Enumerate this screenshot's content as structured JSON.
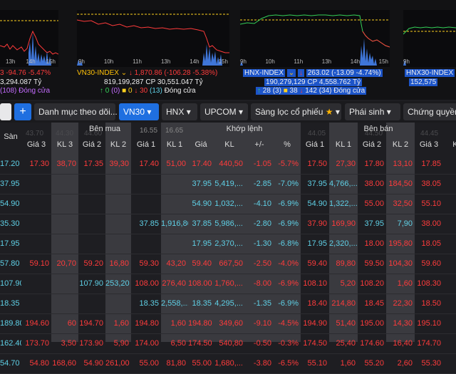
{
  "colors": {
    "up": "#34d058",
    "down": "#ff3b3b",
    "ref": "#ffd21f",
    "ceil": "#c46cff",
    "floor": "#5fd0e6",
    "accent": "#1f6fe0"
  },
  "cards": [
    {
      "ticks": [
        "13h",
        "14h",
        "15h"
      ],
      "name": "",
      "value": "3 -94.76 -5.47%",
      "line2": "3,294.087 Tỷ",
      "line3": "(108) Đóng cửa"
    },
    {
      "ticks": [
        "9h",
        "10h",
        "11h",
        "13h",
        "14h",
        "15h"
      ],
      "name": "VN30-INDEX",
      "arrow": "↓",
      "value": "1,870.86 (-106.28 -5.38%)",
      "line2": "819,199,287 CP 30,551.047 Tỷ",
      "c_up": "0",
      "c_ceil": "(0)",
      "c_ref": "0",
      "c_down": "30",
      "c_floor": "(13)",
      "status": "Đóng cửa"
    },
    {
      "ticks": [
        "9h",
        "10h",
        "11h",
        "13h",
        "14h",
        "15h"
      ],
      "name": "HNX-INDEX",
      "arrow": "↓",
      "value": "263.02 (-13.09 -4.74%)",
      "line2": "190,279,129 CP 4,558.762 Tỷ",
      "c_up": "28",
      "c_ceil": "(3)",
      "c_ref": "38",
      "c_down": "142",
      "c_floor": "(34)",
      "status": "Đóng cửa"
    },
    {
      "ticks": [
        "9h"
      ],
      "name": "HNX30-INDEX",
      "line2": "152,575"
    }
  ],
  "toolbar": {
    "plus": "+",
    "watchlist": "Danh mục theo dõi...",
    "vn30": "VN30",
    "hnx": "HNX",
    "upcom": "UPCOM",
    "screener": "Sàng lọc cổ phiếu",
    "derivatives": "Phái sinh",
    "warrants": "Chứng quyền"
  },
  "headers": {
    "san": "Sàn",
    "ben_mua": "Bên mua",
    "khop_lenh": "Khớp lệnh",
    "ben_ban": "Bên bán",
    "cols": [
      "Giá 3",
      "KL 3",
      "Giá 2",
      "KL 2",
      "Giá 1",
      "KL 1",
      "Giá",
      "KL",
      "+/-",
      "%",
      "Giá 1",
      "KL 1",
      "Giá 2",
      "KL 2",
      "Giá 3",
      "KL"
    ]
  },
  "rows": [
    {
      "san": "17.20",
      "c": [
        "17.30",
        "38,70",
        "17.35",
        "39,30",
        "17.40",
        "51,00",
        "17.40",
        "440,50",
        "-1.05",
        "-5.7%",
        "17.50",
        "27,30",
        "17.80",
        "13,10",
        "17.85",
        "7"
      ],
      "k": [
        "r",
        "r",
        "r",
        "r",
        "r",
        "r",
        "r",
        "r",
        "r",
        "r",
        "r",
        "r",
        "r",
        "r",
        "r",
        "r"
      ]
    },
    {
      "san": "37.95",
      "c": [
        "",
        "",
        "",
        "",
        "",
        "",
        "37.95",
        "5,419,...",
        "-2.85",
        "-7.0%",
        "37.95",
        "4,766,...",
        "38.00",
        "184,50",
        "38.05",
        "22"
      ],
      "k": [
        "",
        "",
        "",
        "",
        "",
        "",
        "f",
        "f",
        "f",
        "f",
        "f",
        "f",
        "r",
        "r",
        "r",
        "r"
      ]
    },
    {
      "san": "54.90",
      "c": [
        "",
        "",
        "",
        "",
        "",
        "",
        "54.90",
        "1,032,...",
        "-4.10",
        "-6.9%",
        "54.90",
        "1,322,...",
        "55.00",
        "32,50",
        "55.10",
        ""
      ],
      "k": [
        "",
        "",
        "",
        "",
        "",
        "",
        "f",
        "f",
        "f",
        "f",
        "f",
        "f",
        "r",
        "r",
        "r",
        "r"
      ]
    },
    {
      "san": "35.30",
      "c": [
        "",
        "",
        "",
        "",
        "37.85",
        "1,916,80",
        "37.85",
        "5,986,...",
        "-2.80",
        "-6.9%",
        "37.90",
        "169,90",
        "37.95",
        "7,90",
        "38.00",
        "8"
      ],
      "k": [
        "",
        "",
        "",
        "",
        "f",
        "f",
        "f",
        "f",
        "f",
        "f",
        "r",
        "r",
        "f",
        "f",
        "r",
        "r"
      ]
    },
    {
      "san": "17.95",
      "c": [
        "",
        "",
        "",
        "",
        "",
        "",
        "17.95",
        "2,370,...",
        "-1.30",
        "-6.8%",
        "17.95",
        "2,320,...",
        "18.00",
        "195,80",
        "18.05",
        "6"
      ],
      "k": [
        "",
        "",
        "",
        "",
        "",
        "",
        "f",
        "f",
        "f",
        "f",
        "f",
        "f",
        "r",
        "r",
        "r",
        "r"
      ]
    },
    {
      "san": "57.80",
      "c": [
        "59.10",
        "20,70",
        "59.20",
        "16,80",
        "59.30",
        "43,20",
        "59.40",
        "667,50",
        "-2.50",
        "-4.0%",
        "59.40",
        "89,80",
        "59.50",
        "104,30",
        "59.60",
        "2"
      ],
      "k": [
        "r",
        "r",
        "r",
        "r",
        "r",
        "r",
        "r",
        "r",
        "r",
        "r",
        "r",
        "r",
        "r",
        "r",
        "r",
        "r"
      ]
    },
    {
      "san": "107.90",
      "c": [
        "",
        "",
        "107.90",
        "253,20",
        "108.00",
        "276,40",
        "108.00",
        "1,760,...",
        "-8.00",
        "-6.9%",
        "108.10",
        "5,20",
        "108.20",
        "1,60",
        "108.30",
        "2"
      ],
      "k": [
        "",
        "",
        "f",
        "f",
        "r",
        "r",
        "r",
        "r",
        "r",
        "r",
        "r",
        "r",
        "r",
        "r",
        "r",
        "r"
      ]
    },
    {
      "san": "18.35",
      "c": [
        "",
        "",
        "",
        "",
        "18.35",
        "2,558,...",
        "18.35",
        "4,295,...",
        "-1.35",
        "-6.9%",
        "18.40",
        "214,80",
        "18.45",
        "22,30",
        "18.50",
        "1"
      ],
      "k": [
        "",
        "",
        "",
        "",
        "f",
        "f",
        "f",
        "f",
        "f",
        "f",
        "r",
        "r",
        "r",
        "r",
        "r",
        "r"
      ]
    },
    {
      "san": "189.80",
      "c": [
        "194.60",
        "60",
        "194.70",
        "1,60",
        "194.80",
        "1,60",
        "194.80",
        "349,60",
        "-9.10",
        "-4.5%",
        "194.90",
        "51,40",
        "195.00",
        "14,30",
        "195.10",
        ""
      ],
      "k": [
        "r",
        "r",
        "r",
        "r",
        "r",
        "r",
        "r",
        "r",
        "r",
        "r",
        "r",
        "r",
        "r",
        "r",
        "r",
        "r"
      ]
    },
    {
      "san": "162.40",
      "c": [
        "173.70",
        "3,50",
        "173.90",
        "5,90",
        "174.00",
        "6,50",
        "174.50",
        "540,80",
        "-0.50",
        "-0.3%",
        "174.50",
        "25,40",
        "174.60",
        "16,40",
        "174.70",
        ""
      ],
      "k": [
        "r",
        "r",
        "r",
        "r",
        "r",
        "r",
        "r",
        "r",
        "r",
        "r",
        "r",
        "r",
        "r",
        "r",
        "r",
        "r"
      ]
    },
    {
      "san": "54.70",
      "c": [
        "54.80",
        "168,60",
        "54.90",
        "261,00",
        "55.00",
        "81,80",
        "55.00",
        "1,680,...",
        "-3.80",
        "-6.5%",
        "55.10",
        "1,60",
        "55.20",
        "2,60",
        "55.30",
        ""
      ],
      "k": [
        "r",
        "r",
        "r",
        "r",
        "r",
        "r",
        "r",
        "r",
        "r",
        "r",
        "r",
        "r",
        "r",
        "r",
        "r",
        "r"
      ]
    }
  ],
  "ghost": [
    "43.70",
    "44.30",
    "44.60",
    "16.55",
    "16.65",
    "44.05",
    "44.50",
    "44.45"
  ]
}
